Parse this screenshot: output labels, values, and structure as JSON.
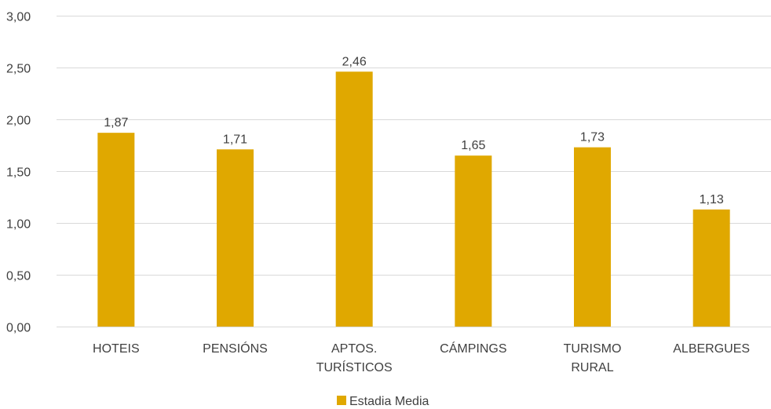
{
  "chart_data": {
    "type": "bar",
    "categories": [
      [
        "HOTEIS"
      ],
      [
        "PENSIÓNS"
      ],
      [
        "APTOS.",
        "TURÍSTICOS"
      ],
      [
        "CÁMPINGS"
      ],
      [
        "TURISMO",
        "RURAL"
      ],
      [
        "ALBERGUES"
      ]
    ],
    "series": [
      {
        "name": "Estadia Media",
        "color": "#E0A800",
        "values": [
          1.87,
          1.71,
          2.46,
          1.65,
          1.73,
          1.13
        ],
        "value_labels": [
          "1,87",
          "1,71",
          "2,46",
          "1,65",
          "1,73",
          "1,13"
        ]
      }
    ],
    "y_ticks": [
      {
        "value": 0,
        "label": "0,00"
      },
      {
        "value": 0.5,
        "label": "0,50"
      },
      {
        "value": 1,
        "label": "1,00"
      },
      {
        "value": 1.5,
        "label": "1,50"
      },
      {
        "value": 2,
        "label": "2,00"
      },
      {
        "value": 2.5,
        "label": "2,50"
      },
      {
        "value": 3,
        "label": "3,00"
      }
    ],
    "ylim": [
      0,
      3
    ],
    "grid": true,
    "legend_position": "bottom",
    "title": "",
    "xlabel": "",
    "ylabel": "",
    "gridline_color": "#D9D9D9",
    "text_color": "#404040"
  }
}
